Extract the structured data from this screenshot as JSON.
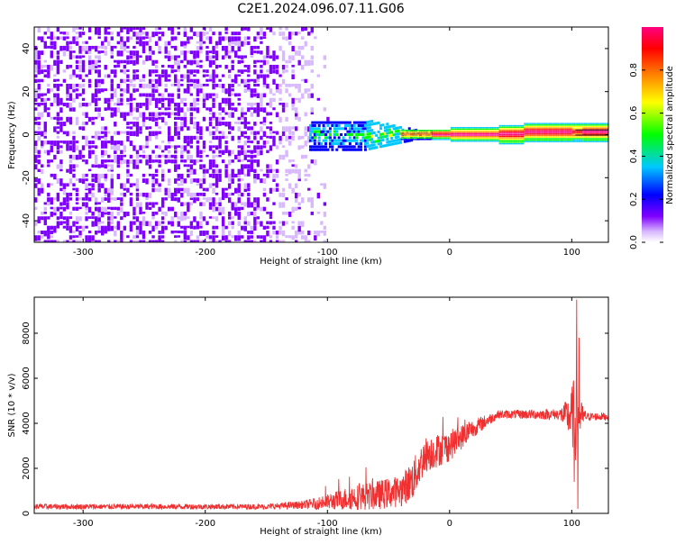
{
  "figure": {
    "title": "C2E1.2024.096.07.11.G06"
  },
  "chart_data": [
    {
      "type": "heatmap",
      "panel": "top",
      "xlabel": "Height of straight line (km)",
      "ylabel": "Frequency (Hz)",
      "xlim": [
        -340,
        130
      ],
      "ylim": [
        -50,
        50
      ],
      "x_ticks": [
        -300,
        -200,
        -100,
        0,
        100
      ],
      "y_ticks": [
        -40,
        -20,
        0,
        20,
        40
      ],
      "colorbar": {
        "label": "Normalized spectral amplitude",
        "range": [
          0.0,
          1.0
        ],
        "ticks": [
          0.0,
          0.2,
          0.4,
          0.6,
          0.8
        ],
        "colormap": [
          "#ffffff",
          "#8000ff",
          "#0000ff",
          "#00c8ff",
          "#00ff00",
          "#ffff00",
          "#ff8000",
          "#ff0000",
          "#ff0080"
        ]
      },
      "features": [
        {
          "x_range": [
            -340,
            -130
          ],
          "frequency_range": [
            -50,
            50
          ],
          "amplitude": "low (~0.05-0.15), noise",
          "color": "#8000ff"
        },
        {
          "x_range": [
            -110,
            -20
          ],
          "frequency_range": [
            -8,
            7
          ],
          "amplitude": "mid (~0.3-0.5)",
          "color": "#00c8ff"
        },
        {
          "x_range": [
            -20,
            130
          ],
          "frequency_center": 0.5,
          "amplitude": "high (~0.8-1.0)",
          "color": "#ff0000"
        }
      ]
    },
    {
      "type": "line",
      "panel": "bottom",
      "xlabel": "Height of straight line (km)",
      "ylabel": "SNR (10 * v/v)",
      "xlim": [
        -340,
        130
      ],
      "ylim": [
        0,
        9600
      ],
      "x_ticks": [
        -300,
        -200,
        -100,
        0,
        100
      ],
      "y_ticks": [
        0,
        2000,
        4000,
        6000,
        8000
      ],
      "series": [
        {
          "color": "#f03030",
          "envelope": [
            {
              "x": -340,
              "mean": 300,
              "jitter": 120
            },
            {
              "x": -150,
              "mean": 300,
              "jitter": 120
            },
            {
              "x": -120,
              "mean": 380,
              "jitter": 180
            },
            {
              "x": -100,
              "mean": 500,
              "jitter": 350
            },
            {
              "x": -80,
              "mean": 700,
              "jitter": 550
            },
            {
              "x": -60,
              "mean": 800,
              "jitter": 650
            },
            {
              "x": -40,
              "mean": 1000,
              "jitter": 700
            },
            {
              "x": -30,
              "mean": 1500,
              "jitter": 900
            },
            {
              "x": -20,
              "mean": 2600,
              "jitter": 800
            },
            {
              "x": 0,
              "mean": 3000,
              "jitter": 700
            },
            {
              "x": 20,
              "mean": 3800,
              "jitter": 400
            },
            {
              "x": 40,
              "mean": 4400,
              "jitter": 180
            },
            {
              "x": 90,
              "mean": 4400,
              "jitter": 250
            },
            {
              "x": 98,
              "mean": 4300,
              "jitter": 900
            },
            {
              "x": 103,
              "mean": 4300,
              "jitter": 2000
            },
            {
              "x": 106,
              "mean": 4300,
              "jitter": 900
            },
            {
              "x": 112,
              "mean": 4300,
              "jitter": 180
            },
            {
              "x": 130,
              "mean": 4300,
              "jitter": 180
            }
          ],
          "spikes": [
            {
              "x": 104,
              "value": 9500
            },
            {
              "x": 105,
              "value": 200
            },
            {
              "x": 106,
              "value": 7800
            },
            {
              "x": 102,
              "value": 1400
            }
          ]
        }
      ]
    }
  ]
}
